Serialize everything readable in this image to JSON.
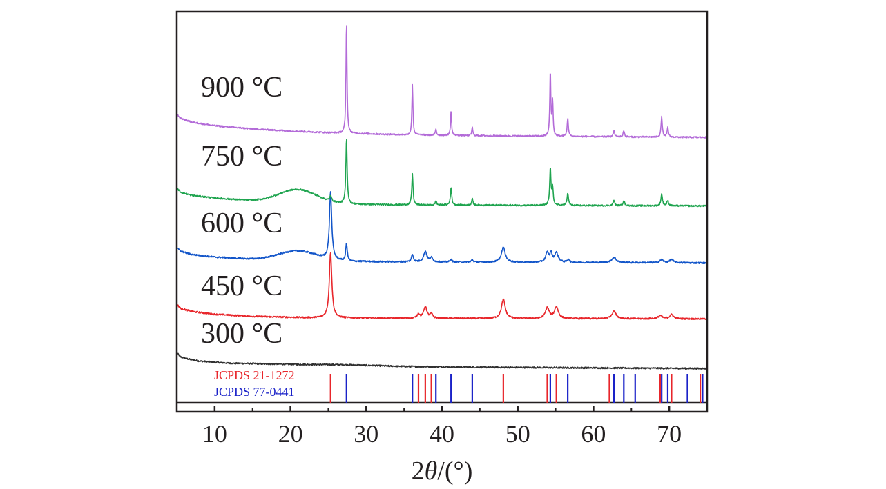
{
  "chart_data": {
    "type": "line",
    "title": "",
    "xlabel_prefix": "2",
    "xlabel_symbol": "θ",
    "xlabel_suffix": "/(°)",
    "ylabel": "",
    "xlim": [
      5,
      75
    ],
    "xticks": [
      10,
      20,
      30,
      40,
      50,
      60,
      70
    ],
    "y_ticks_shown": false,
    "grid": false,
    "colors": {
      "frame": "#231f20",
      "300": "#303030",
      "450": "#e8262b",
      "600": "#1255c9",
      "750": "#1fa44f",
      "900": "#b36bd8",
      "ref_red": "#e8262b",
      "ref_blue": "#1a22c8"
    },
    "series": [
      {
        "name": "300 °C",
        "color": "#303030",
        "baseline": [
          [
            5,
            0.75
          ],
          [
            5.5,
            0.55
          ],
          [
            6.5,
            0.45
          ],
          [
            8,
            0.35
          ],
          [
            12,
            0.25
          ],
          [
            20,
            0.2
          ],
          [
            27,
            0.18
          ],
          [
            35,
            0.1
          ],
          [
            45,
            0.06
          ],
          [
            55,
            0.04
          ],
          [
            65,
            0.02
          ],
          [
            75,
            0
          ]
        ],
        "hump": null,
        "peaks": []
      },
      {
        "name": "450 °C",
        "color": "#e8262b",
        "baseline": [
          [
            5,
            0.7
          ],
          [
            5.5,
            0.5
          ],
          [
            7,
            0.35
          ],
          [
            10,
            0.22
          ],
          [
            15,
            0.12
          ],
          [
            22,
            0.06
          ],
          [
            30,
            0.04
          ],
          [
            45,
            0.02
          ],
          [
            60,
            0.01
          ],
          [
            75,
            0
          ]
        ],
        "hump": null,
        "peaks": [
          [
            25.3,
            3.1,
            0.2
          ],
          [
            36.9,
            0.2,
            0.2
          ],
          [
            37.8,
            0.55,
            0.25
          ],
          [
            38.6,
            0.2,
            0.2
          ],
          [
            48.1,
            0.9,
            0.3
          ],
          [
            53.9,
            0.5,
            0.3
          ],
          [
            55.1,
            0.55,
            0.3
          ],
          [
            62.7,
            0.35,
            0.35
          ],
          [
            68.8,
            0.15,
            0.3
          ],
          [
            70.3,
            0.2,
            0.3
          ]
        ]
      },
      {
        "name": "600 °C",
        "color": "#1255c9",
        "baseline": [
          [
            5,
            0.75
          ],
          [
            5.5,
            0.55
          ],
          [
            7,
            0.4
          ],
          [
            10,
            0.28
          ],
          [
            15,
            0.18
          ],
          [
            25,
            0.08
          ],
          [
            35,
            0.05
          ],
          [
            50,
            0.03
          ],
          [
            75,
            0
          ]
        ],
        "hump": [
          21,
          3.5,
          0.45
        ],
        "peaks": [
          [
            25.3,
            3.2,
            0.18
          ],
          [
            27.4,
            0.85,
            0.12
          ],
          [
            36.1,
            0.35,
            0.15
          ],
          [
            37.8,
            0.5,
            0.25
          ],
          [
            38.6,
            0.2,
            0.2
          ],
          [
            41.2,
            0.15,
            0.12
          ],
          [
            44.0,
            0.12,
            0.12
          ],
          [
            48.1,
            0.7,
            0.3
          ],
          [
            53.9,
            0.45,
            0.25
          ],
          [
            54.4,
            0.4,
            0.15
          ],
          [
            55.1,
            0.45,
            0.3
          ],
          [
            56.7,
            0.15,
            0.15
          ],
          [
            62.7,
            0.25,
            0.35
          ],
          [
            69.0,
            0.15,
            0.25
          ],
          [
            70.3,
            0.15,
            0.3
          ]
        ]
      },
      {
        "name": "750 °C",
        "color": "#1fa44f",
        "baseline": [
          [
            5,
            0.85
          ],
          [
            5.5,
            0.65
          ],
          [
            7,
            0.5
          ],
          [
            10,
            0.38
          ],
          [
            15,
            0.25
          ],
          [
            25,
            0.1
          ],
          [
            35,
            0.05
          ],
          [
            50,
            0.03
          ],
          [
            75,
            0
          ]
        ],
        "hump": [
          21,
          3.5,
          0.62
        ],
        "peaks": [
          [
            25.3,
            0.25,
            0.15
          ],
          [
            27.4,
            3.1,
            0.1
          ],
          [
            36.1,
            1.45,
            0.1
          ],
          [
            39.2,
            0.2,
            0.1
          ],
          [
            41.2,
            0.85,
            0.1
          ],
          [
            44.0,
            0.3,
            0.1
          ],
          [
            54.3,
            1.75,
            0.1
          ],
          [
            54.6,
            0.8,
            0.1
          ],
          [
            56.6,
            0.55,
            0.12
          ],
          [
            62.7,
            0.25,
            0.12
          ],
          [
            64.0,
            0.25,
            0.12
          ],
          [
            69.0,
            0.55,
            0.12
          ],
          [
            69.8,
            0.25,
            0.12
          ]
        ]
      },
      {
        "name": "900 °C",
        "color": "#b36bd8",
        "baseline": [
          [
            5,
            1.1
          ],
          [
            5.5,
            0.9
          ],
          [
            7,
            0.72
          ],
          [
            10,
            0.55
          ],
          [
            15,
            0.4
          ],
          [
            20,
            0.3
          ],
          [
            25,
            0.22
          ],
          [
            35,
            0.12
          ],
          [
            50,
            0.06
          ],
          [
            65,
            0.02
          ],
          [
            75,
            0
          ]
        ],
        "hump": null,
        "peaks": [
          [
            27.4,
            5.3,
            0.08
          ],
          [
            36.1,
            2.4,
            0.08
          ],
          [
            39.2,
            0.3,
            0.08
          ],
          [
            41.2,
            1.15,
            0.08
          ],
          [
            44.0,
            0.4,
            0.08
          ],
          [
            54.3,
            3.05,
            0.08
          ],
          [
            54.6,
            1.65,
            0.08
          ],
          [
            56.6,
            0.85,
            0.1
          ],
          [
            62.7,
            0.3,
            0.1
          ],
          [
            64.0,
            0.3,
            0.1
          ],
          [
            69.0,
            0.95,
            0.1
          ],
          [
            69.8,
            0.45,
            0.1
          ]
        ]
      }
    ],
    "offsets": [
      0,
      2.35,
      5.0,
      7.7,
      10.95
    ],
    "ylim": [
      -2.05,
      16.9
    ],
    "series_labels": [
      "300 °C",
      "450 °C",
      "600 °C",
      "750 °C",
      "900 °C"
    ],
    "reference_patterns": [
      {
        "name": "JCPDS 21-1272",
        "color": "#e8262b",
        "positions": [
          25.3,
          36.9,
          37.8,
          38.6,
          48.1,
          53.9,
          55.1,
          62.1,
          62.7,
          68.8,
          70.3,
          74.1
        ]
      },
      {
        "name": "JCPDS 77-0441",
        "color": "#1a22c8",
        "positions": [
          27.4,
          36.1,
          39.2,
          41.2,
          44.0,
          54.3,
          56.6,
          62.7,
          64.0,
          65.5,
          69.0,
          69.8,
          72.4,
          74.4
        ]
      }
    ]
  }
}
